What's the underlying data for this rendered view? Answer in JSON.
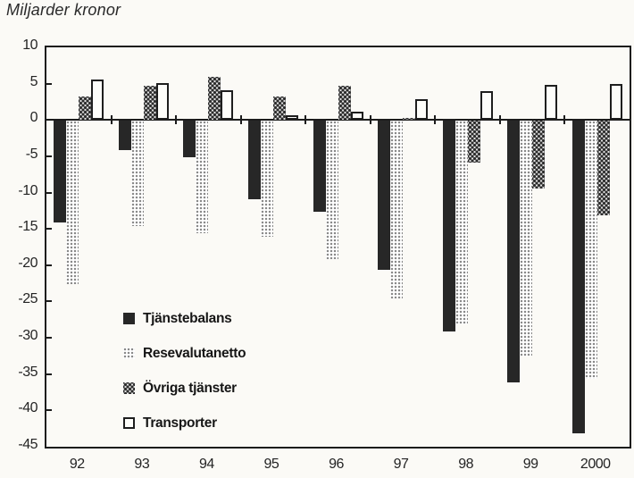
{
  "title": "Miljarder kronor",
  "colors": {
    "solid_bar": "#272727",
    "frame": "#1c1c1c",
    "background": "#fbfaf6"
  },
  "chart_data": {
    "type": "bar",
    "title": "Miljarder kronor",
    "xlabel": "",
    "ylabel": "Miljarder kronor",
    "categories": [
      "92",
      "93",
      "94",
      "95",
      "96",
      "97",
      "98",
      "99",
      "2000"
    ],
    "series": [
      {
        "name": "Tjänstebalans",
        "style": "solid",
        "values": [
          -14,
          -4,
          -5,
          -10.8,
          -12.5,
          -20.5,
          -29,
          -36,
          -43
        ]
      },
      {
        "name": "Resevalutanetto",
        "style": "light-dots",
        "values": [
          -22.5,
          -14.5,
          -15.5,
          -16,
          -19,
          -24.5,
          -28,
          -32.5,
          -35.5
        ]
      },
      {
        "name": "Övriga tjänster",
        "style": "dark-dots",
        "values": [
          3.2,
          4.7,
          6,
          3.2,
          4.7,
          0.3,
          -5.7,
          -9.3,
          -13
        ]
      },
      {
        "name": "Transporter",
        "style": "outline",
        "values": [
          5.6,
          5.1,
          4.1,
          0.7,
          1.2,
          2.9,
          4,
          4.8,
          5
        ]
      }
    ],
    "ylim": [
      -45,
      10
    ],
    "ytick_step": 5,
    "yticks": [
      10,
      5,
      0,
      -5,
      -10,
      -15,
      -20,
      -25,
      -30,
      -35,
      -40,
      -45
    ],
    "grid": false,
    "legend_position": "inside-left-middle",
    "baseline": 0
  }
}
